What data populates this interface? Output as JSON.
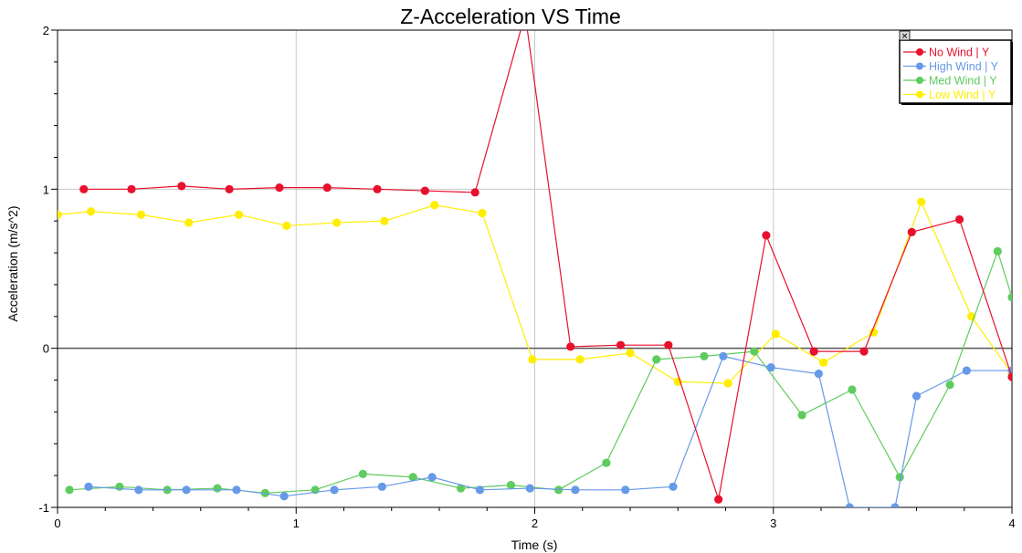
{
  "chart_data": {
    "type": "line",
    "title": "Z-Acceleration VS Time",
    "xlabel": "Time (s)",
    "ylabel": "Acceleration (m/s^2)",
    "xlim": [
      0,
      4
    ],
    "ylim": [
      -1,
      2
    ],
    "x_ticks": [
      0,
      1,
      2,
      3,
      4
    ],
    "x_tick_labels": [
      "0",
      "1",
      "2",
      "3",
      "4"
    ],
    "y_ticks": [
      -1,
      0,
      1,
      2
    ],
    "y_tick_labels": [
      "-1",
      "0",
      "1",
      "2"
    ],
    "grid": true,
    "legend_position": "top-right",
    "series": [
      {
        "name": "No Wind | Y",
        "color": "#e8102d",
        "x": [
          0.11,
          0.31,
          0.52,
          0.72,
          0.93,
          1.13,
          1.34,
          1.54,
          1.75,
          1.96,
          2.15,
          2.36,
          2.56,
          2.77,
          2.97,
          3.17,
          3.38,
          3.58,
          3.78,
          4.0
        ],
        "y": [
          1.0,
          1.0,
          1.02,
          1.0,
          1.01,
          1.01,
          1.0,
          0.99,
          0.98,
          2.1,
          0.01,
          0.02,
          0.02,
          -0.95,
          0.71,
          -0.02,
          -0.02,
          0.73,
          0.81,
          -0.18
        ]
      },
      {
        "name": "High Wind | Y",
        "color": "#6699e8",
        "x": [
          0.13,
          0.34,
          0.54,
          0.75,
          0.95,
          1.16,
          1.36,
          1.57,
          1.77,
          1.98,
          2.17,
          2.38,
          2.58,
          2.79,
          2.99,
          3.19,
          3.32,
          3.51,
          3.6,
          3.81,
          4.0
        ],
        "y": [
          -0.87,
          -0.89,
          -0.89,
          -0.89,
          -0.93,
          -0.89,
          -0.87,
          -0.81,
          -0.89,
          -0.88,
          -0.89,
          -0.89,
          -0.87,
          -0.05,
          -0.12,
          -0.16,
          -1.0,
          -1.0,
          -0.3,
          -0.14,
          -0.14
        ]
      },
      {
        "name": "Med Wind | Y",
        "color": "#5fcc5f",
        "x": [
          0.05,
          0.26,
          0.46,
          0.67,
          0.87,
          1.08,
          1.28,
          1.49,
          1.69,
          1.9,
          2.1,
          2.3,
          2.51,
          2.71,
          2.92,
          3.12,
          3.33,
          3.53,
          3.74,
          3.94,
          4.0
        ],
        "y": [
          -0.89,
          -0.87,
          -0.89,
          -0.88,
          -0.91,
          -0.89,
          -0.79,
          -0.81,
          -0.88,
          -0.86,
          -0.89,
          -0.72,
          -0.07,
          -0.05,
          -0.02,
          -0.42,
          -0.26,
          -0.81,
          -0.23,
          0.61,
          0.32
        ]
      },
      {
        "name": "Low Wind | Y",
        "color": "#ffee00",
        "x": [
          0.0,
          0.14,
          0.35,
          0.55,
          0.76,
          0.96,
          1.17,
          1.37,
          1.58,
          1.78,
          1.99,
          2.19,
          2.4,
          2.6,
          2.81,
          3.01,
          3.21,
          3.42,
          3.62,
          3.83,
          4.0
        ],
        "y": [
          0.84,
          0.86,
          0.84,
          0.79,
          0.84,
          0.77,
          0.79,
          0.8,
          0.9,
          0.85,
          -0.07,
          -0.07,
          -0.03,
          -0.21,
          -0.22,
          0.09,
          -0.09,
          0.1,
          0.92,
          0.2,
          -0.16
        ]
      }
    ]
  },
  "legend": {
    "close_glyph": "✕"
  }
}
